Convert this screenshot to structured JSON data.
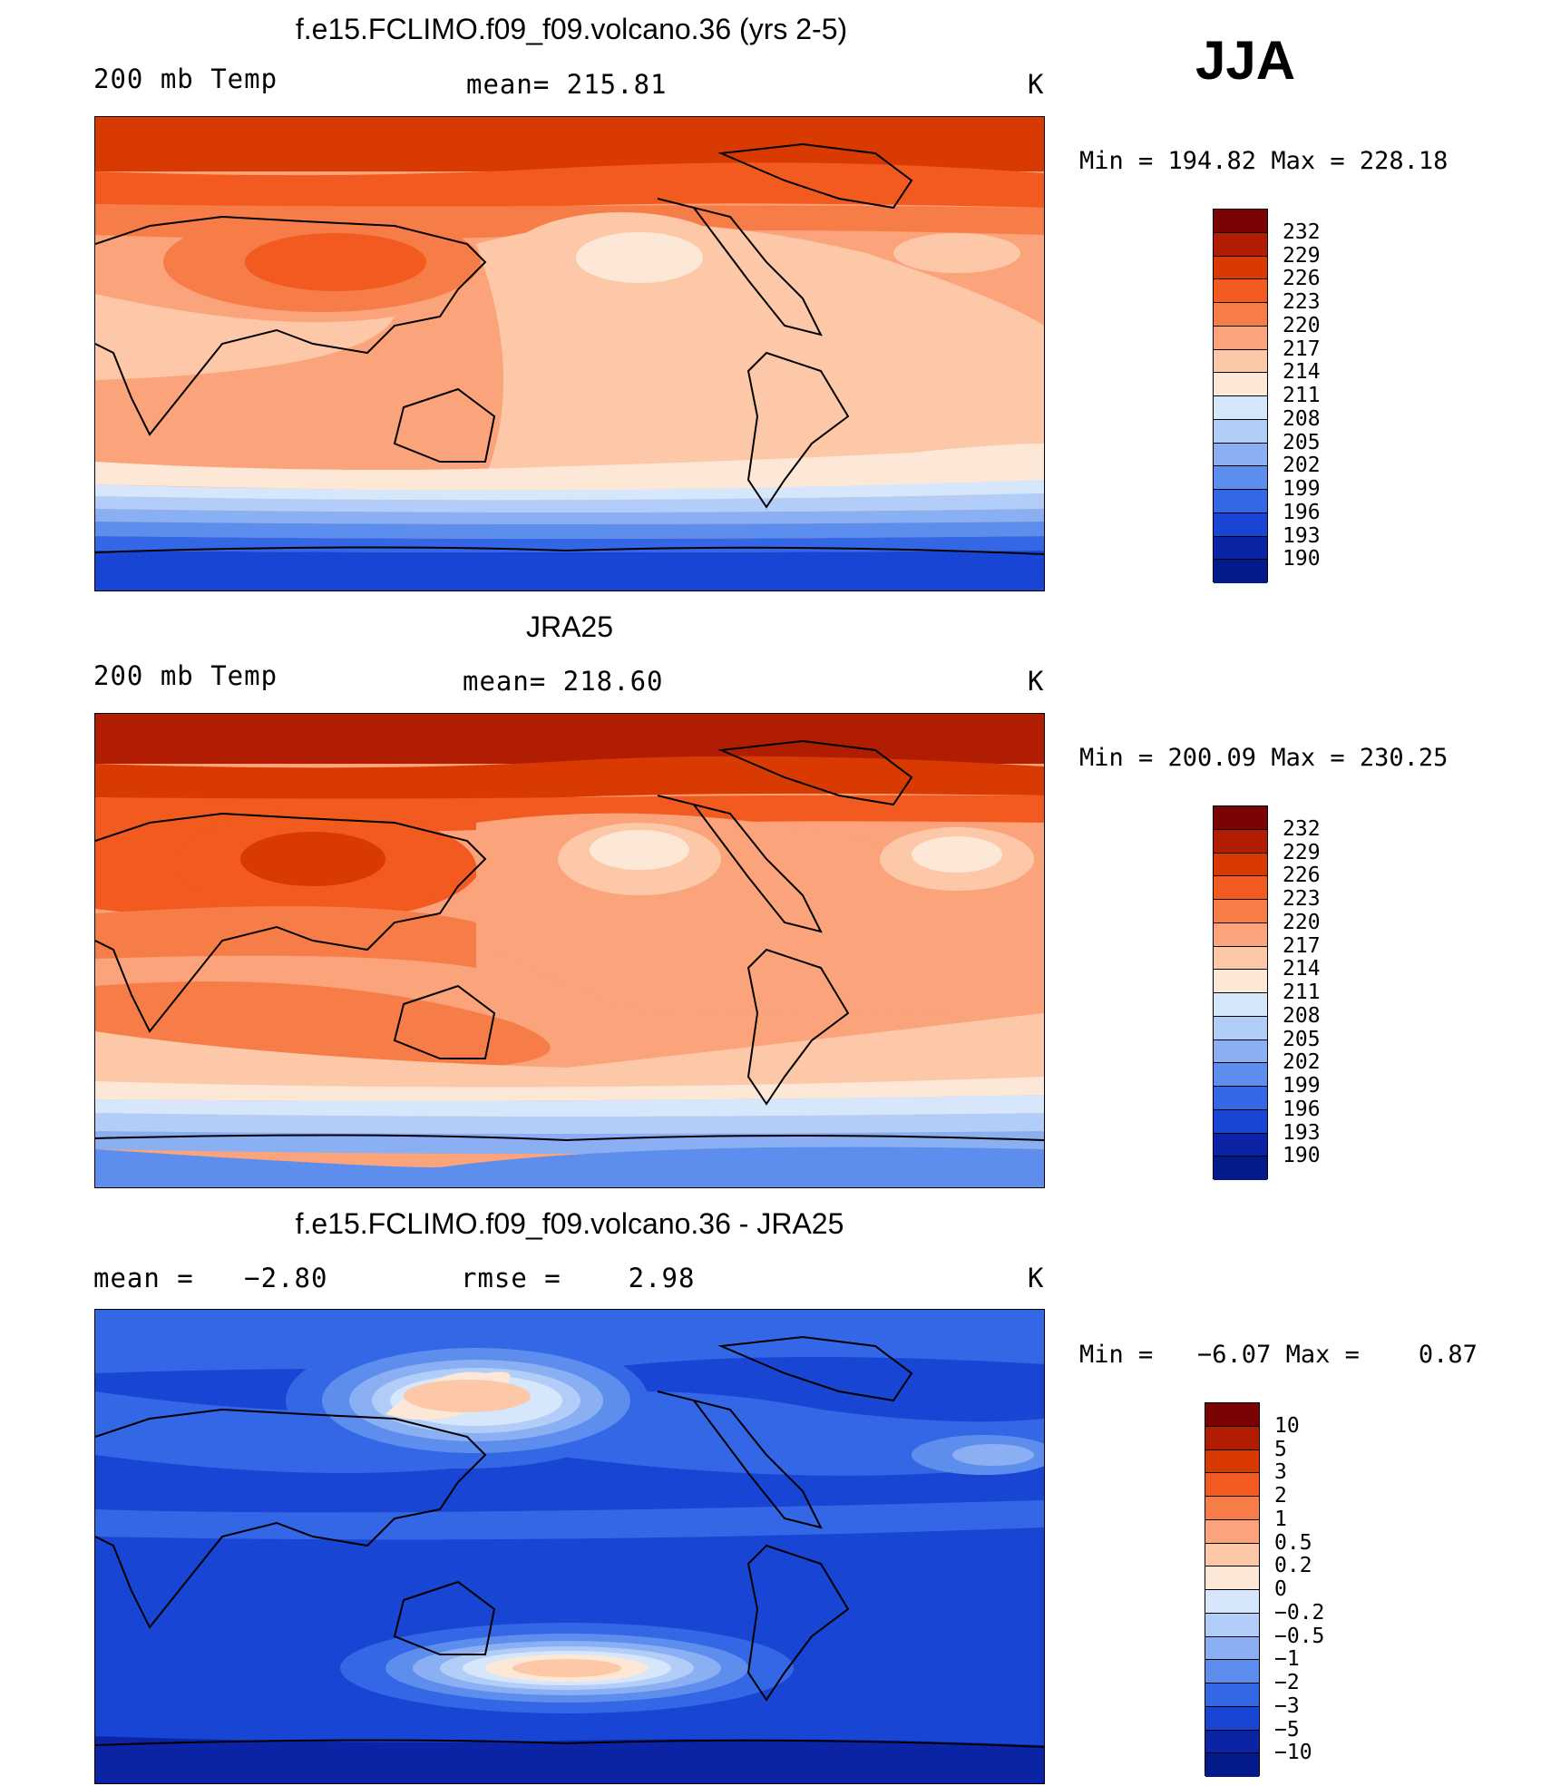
{
  "season": "JJA",
  "panels": [
    {
      "title": "f.e15.FCLIMO.f09_f09.volcano.36 (yrs 2-5)",
      "left_label": "200 mb Temp",
      "center_label": "mean= 215.81",
      "unit": "K",
      "minmax": "Min = 194.82 Max = 228.18",
      "colorbar": [
        "232",
        "229",
        "226",
        "223",
        "220",
        "217",
        "214",
        "211",
        "208",
        "205",
        "202",
        "199",
        "196",
        "193",
        "190"
      ]
    },
    {
      "title": "JRA25",
      "left_label": "200 mb Temp",
      "center_label": "mean= 218.60",
      "unit": "K",
      "minmax": "Min = 200.09 Max = 230.25",
      "colorbar": [
        "232",
        "229",
        "226",
        "223",
        "220",
        "217",
        "214",
        "211",
        "208",
        "205",
        "202",
        "199",
        "196",
        "193",
        "190"
      ]
    },
    {
      "title": "f.e15.FCLIMO.f09_f09.volcano.36 - JRA25",
      "left_label": "mean =   −2.80",
      "center_label": "rmse =    2.98",
      "unit": "K",
      "minmax": "Min =   −6.07 Max =    0.87",
      "colorbar": [
        "10",
        "5",
        "3",
        "2",
        "1",
        "0.5",
        "0.2",
        "0",
        "−0.2",
        "−0.5",
        "−1",
        "−2",
        "−3",
        "−5",
        "−10"
      ]
    }
  ],
  "colors": {
    "temp_scale": [
      "#7a0403",
      "#b01d03",
      "#d93a02",
      "#f25a1f",
      "#f77d48",
      "#fba37a",
      "#fcc8a8",
      "#fde7d6",
      "#d6e6fb",
      "#b2cdf7",
      "#8aaff2",
      "#5d8ded",
      "#3467e6",
      "#1845d4",
      "#0b24a6",
      "#031b8a"
    ],
    "diff_scale": [
      "#7a0403",
      "#b01d03",
      "#d93a02",
      "#f25a1f",
      "#f77d48",
      "#fba37a",
      "#fcc8a8",
      "#fde7d6",
      "#f4f6fc",
      "#d6e6fb",
      "#b2cdf7",
      "#8aaff2",
      "#5d8ded",
      "#3467e6",
      "#1845d4",
      "#0b24a6",
      "#031b8a"
    ]
  }
}
